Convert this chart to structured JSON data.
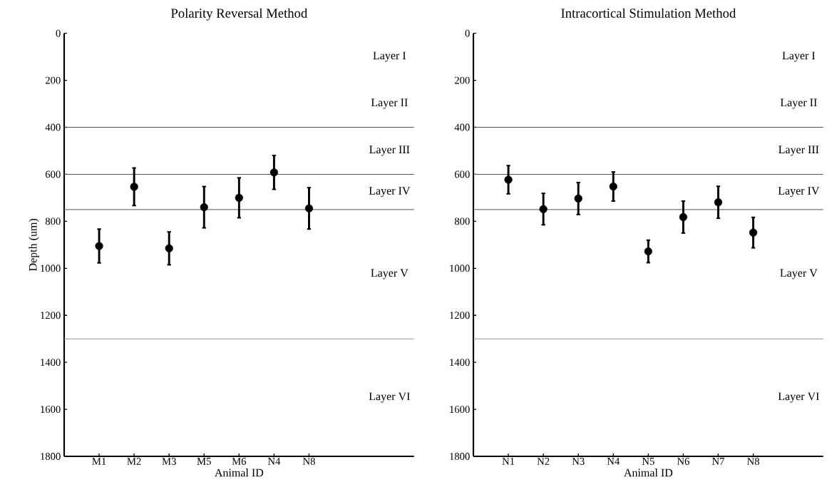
{
  "chart_data": [
    {
      "type": "scatter",
      "title": "Polarity Reversal Method",
      "xlabel": "Animal ID",
      "ylabel": "Depth (um)",
      "categories": [
        "M1",
        "M2",
        "M3",
        "M5",
        "M6",
        "N4",
        "N8"
      ],
      "values": [
        905,
        653,
        915,
        740,
        700,
        592,
        745
      ],
      "errors": [
        72,
        80,
        70,
        88,
        85,
        72,
        88
      ],
      "color": "#000000",
      "marker": "circle",
      "ylim": [
        1800,
        0
      ],
      "yticks": [
        0,
        200,
        400,
        600,
        800,
        1000,
        1200,
        1400,
        1600,
        1800
      ],
      "ref_lines": [
        {
          "axis": "y",
          "value": 400,
          "color": "#555555"
        },
        {
          "axis": "y",
          "value": 600,
          "color": "#555555"
        },
        {
          "axis": "y",
          "value": 750,
          "color": "#777777"
        },
        {
          "axis": "y",
          "value": 1300,
          "color": "#999999"
        }
      ],
      "annotations": [
        "Layer I",
        "Layer II",
        "Layer III",
        "Layer IV",
        "Layer V",
        "Layer VI"
      ]
    },
    {
      "type": "scatter",
      "title": "Intracortical Stimulation Method",
      "xlabel": "Animal ID",
      "categories": [
        "N1",
        "N2",
        "N3",
        "N4",
        "N5",
        "N6",
        "N7",
        "N8"
      ],
      "values": [
        623,
        748,
        703,
        652,
        928,
        782,
        719,
        848
      ],
      "errors": [
        60,
        67,
        68,
        62,
        48,
        68,
        68,
        65
      ],
      "color": "#000000",
      "marker": "circle",
      "ylim": [
        1800,
        0
      ],
      "yticks": [
        0,
        200,
        400,
        600,
        800,
        1000,
        1200,
        1400,
        1600,
        1800
      ],
      "ref_lines": [
        {
          "axis": "y",
          "value": 400,
          "color": "#555555"
        },
        {
          "axis": "y",
          "value": 600,
          "color": "#555555"
        },
        {
          "axis": "y",
          "value": 750,
          "color": "#777777"
        },
        {
          "axis": "y",
          "value": 1300,
          "color": "#999999"
        }
      ],
      "annotations": [
        "Layer I",
        "Layer II",
        "Layer III",
        "Layer IV",
        "Layer V",
        "Layer VI"
      ]
    }
  ]
}
